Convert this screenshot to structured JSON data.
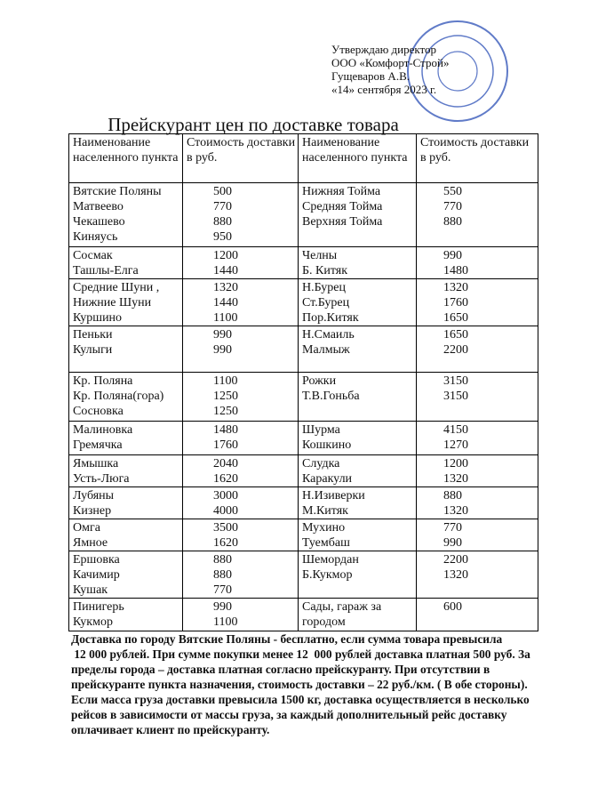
{
  "approval": [
    "Утверждаю директор",
    "ООО «Комфорт-Строй»",
    "Гущеваров А.В.",
    "«14» сентября 2023 г."
  ],
  "title": "Прейскурант цен по доставке товара",
  "table": {
    "header": [
      "Наименование населенного пункта",
      "Стоимость доставки в руб.",
      "Наименование населенного пункта",
      "Стоимость доставки в руб."
    ],
    "rows": [
      [
        [
          "Вятские Поляны",
          "Матвеево",
          "Чекашево",
          "Киняусь"
        ],
        [
          500,
          770,
          880,
          950
        ],
        [
          "Нижняя Тойма",
          "Средняя Тойма",
          "Верхняя  Тойма"
        ],
        [
          550,
          770,
          880
        ]
      ],
      [
        [
          "Сосмак",
          "Ташлы-Елга"
        ],
        [
          1200,
          1440
        ],
        [
          "Челны",
          "Б. Китяк"
        ],
        [
          990,
          1480
        ]
      ],
      [
        [
          "Средние Шуни ,",
          "Нижние Шуни",
          "Куршино"
        ],
        [
          1320,
          1440,
          1100
        ],
        [
          "Н.Бурец",
          "Ст.Бурец",
          "Пор.Китяк"
        ],
        [
          1320,
          1760,
          1650
        ]
      ],
      [
        [
          "Пеньки",
          "Кулыги"
        ],
        [
          990,
          990
        ],
        [
          "Н.Смаиль",
          "Малмыж"
        ],
        [
          1650,
          2200
        ]
      ],
      [
        [
          "Кр. Поляна",
          "Кр. Поляна(гора)",
          "Сосновка"
        ],
        [
          1100,
          1250,
          1250
        ],
        [
          "Рожки",
          "Т.В.Гоньба"
        ],
        [
          3150,
          3150
        ]
      ],
      [
        [
          "Малиновка",
          "Гремячка"
        ],
        [
          1480,
          1760
        ],
        [
          "Шурма",
          "Кошкино"
        ],
        [
          4150,
          1270
        ]
      ],
      [
        [
          "Ямышка",
          "Усть-Люга"
        ],
        [
          2040,
          1620
        ],
        [
          "Слудка",
          "Каракули"
        ],
        [
          1200,
          1320
        ]
      ],
      [
        [
          "Лубяны",
          "Кизнер"
        ],
        [
          3000,
          4000
        ],
        [
          "Н.Изиверки",
          "М.Китяк"
        ],
        [
          880,
          1320
        ]
      ],
      [
        [
          "Омга",
          "Ямное"
        ],
        [
          3500,
          1620
        ],
        [
          "Мухино",
          "Туембаш"
        ],
        [
          770,
          990
        ]
      ],
      [
        [
          "Ершовка",
          "Качимир",
          "Кушак"
        ],
        [
          880,
          880,
          770
        ],
        [
          "Шемордан",
          "Б.Кукмор"
        ],
        [
          2200,
          1320
        ]
      ],
      [
        [
          "Пинигерь",
          "Кукмор"
        ],
        [
          990,
          1100
        ],
        [
          "Сады, гараж за городом"
        ],
        [
          600
        ]
      ]
    ]
  },
  "footer": [
    "Доставка по городу Вятские Поляны - бесплатно, если сумма товара превысила",
    " 12 000 рублей. При сумме покупки менее 12  000 рублей доставка платная 500 руб. За",
    "пределы города – доставка платная согласно прейскуранту. При отсутствии в",
    "прейскуранте пункта назначения, стоимость доставки – 22 руб./км. ( В обе стороны).",
    "Если масса груза доставки превысила 1500 кг, доставка осуществляется в несколько",
    "рейсов в зависимости от массы груза, за каждый дополнительный рейс доставку",
    "оплачивает клиент по прейскуранту."
  ]
}
